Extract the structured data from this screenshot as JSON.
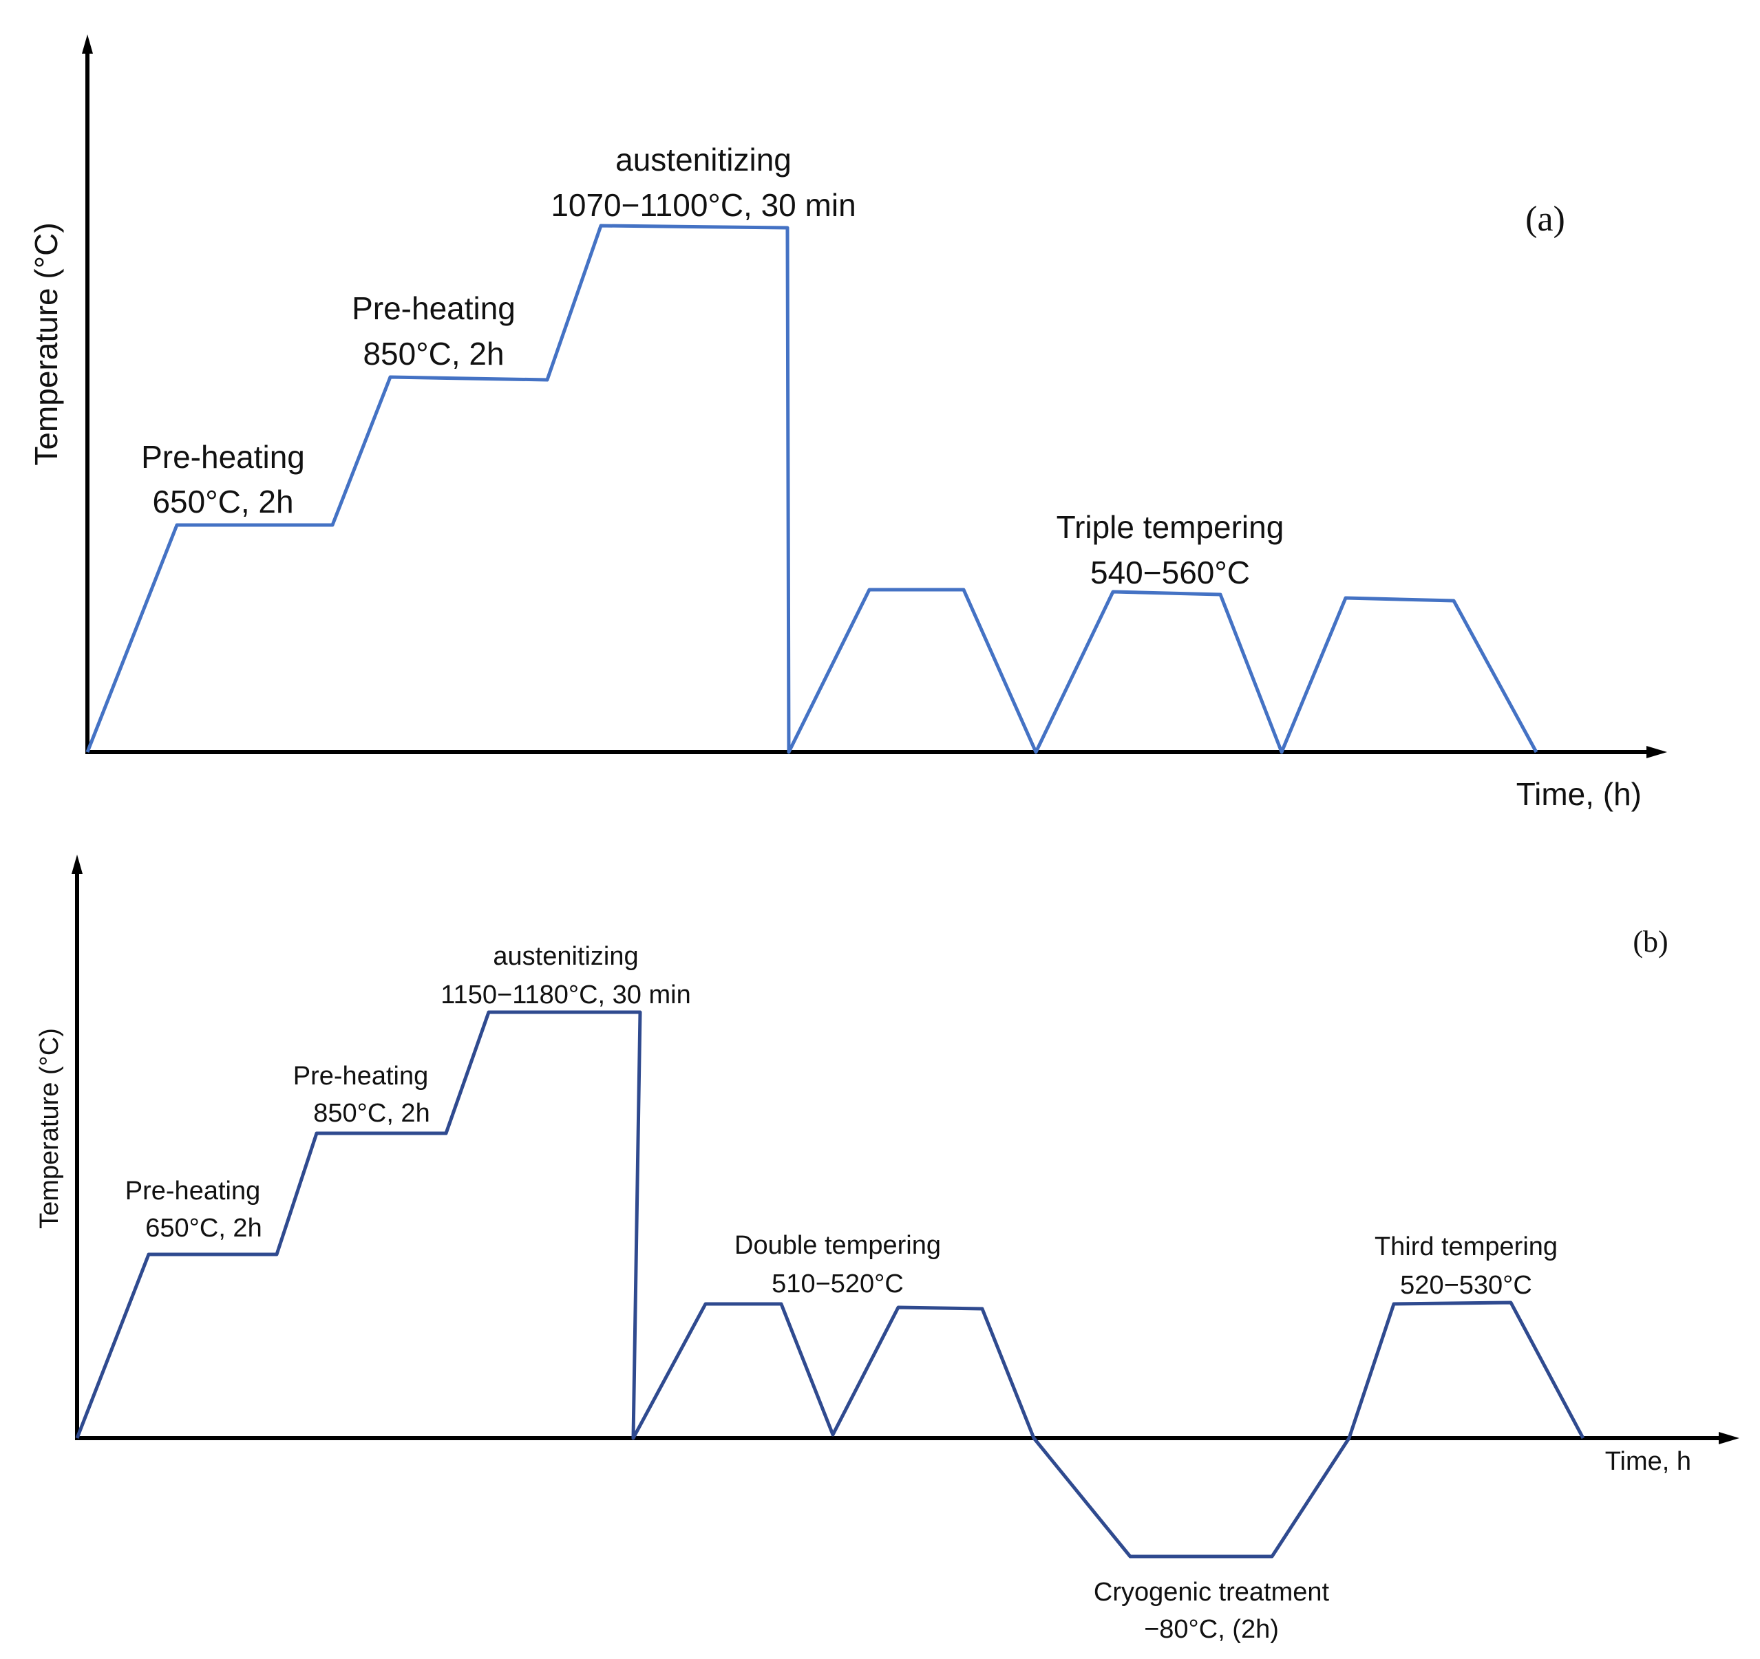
{
  "colors": {
    "profile_a": "#4472c4",
    "profile_b": "#2f4a8f",
    "axis": "#000000",
    "text": "#111111"
  },
  "panel_a": {
    "tag": "(a)",
    "y_axis_label": "Temperature (°C)",
    "x_axis_label": "Time, (h)",
    "preheat1": {
      "title": "Pre-heating",
      "value": "650°C, 2h"
    },
    "preheat2": {
      "title": "Pre-heating",
      "value": "850°C, 2h"
    },
    "austenitizing": {
      "title": "austenitizing",
      "value": "1070−1100°C, 30 min"
    },
    "tempering": {
      "title": "Triple tempering",
      "value": "540−560°C"
    }
  },
  "panel_b": {
    "tag": "(b)",
    "y_axis_label": "Temperature (°C)",
    "x_axis_label": "Time, h",
    "preheat1": {
      "title": "Pre-heating",
      "value": "650°C, 2h"
    },
    "preheat2": {
      "title": "Pre-heating",
      "value": "850°C, 2h"
    },
    "austenitizing": {
      "title": "austenitizing",
      "value": "1150−1180°C, 30 min"
    },
    "double_tempering": {
      "title": "Double tempering",
      "value": "510−520°C"
    },
    "third_tempering": {
      "title": "Third tempering",
      "value": "520−530°C"
    },
    "cryogenic": {
      "title": "Cryogenic treatment",
      "value": "−80°C, (2h)"
    }
  }
}
